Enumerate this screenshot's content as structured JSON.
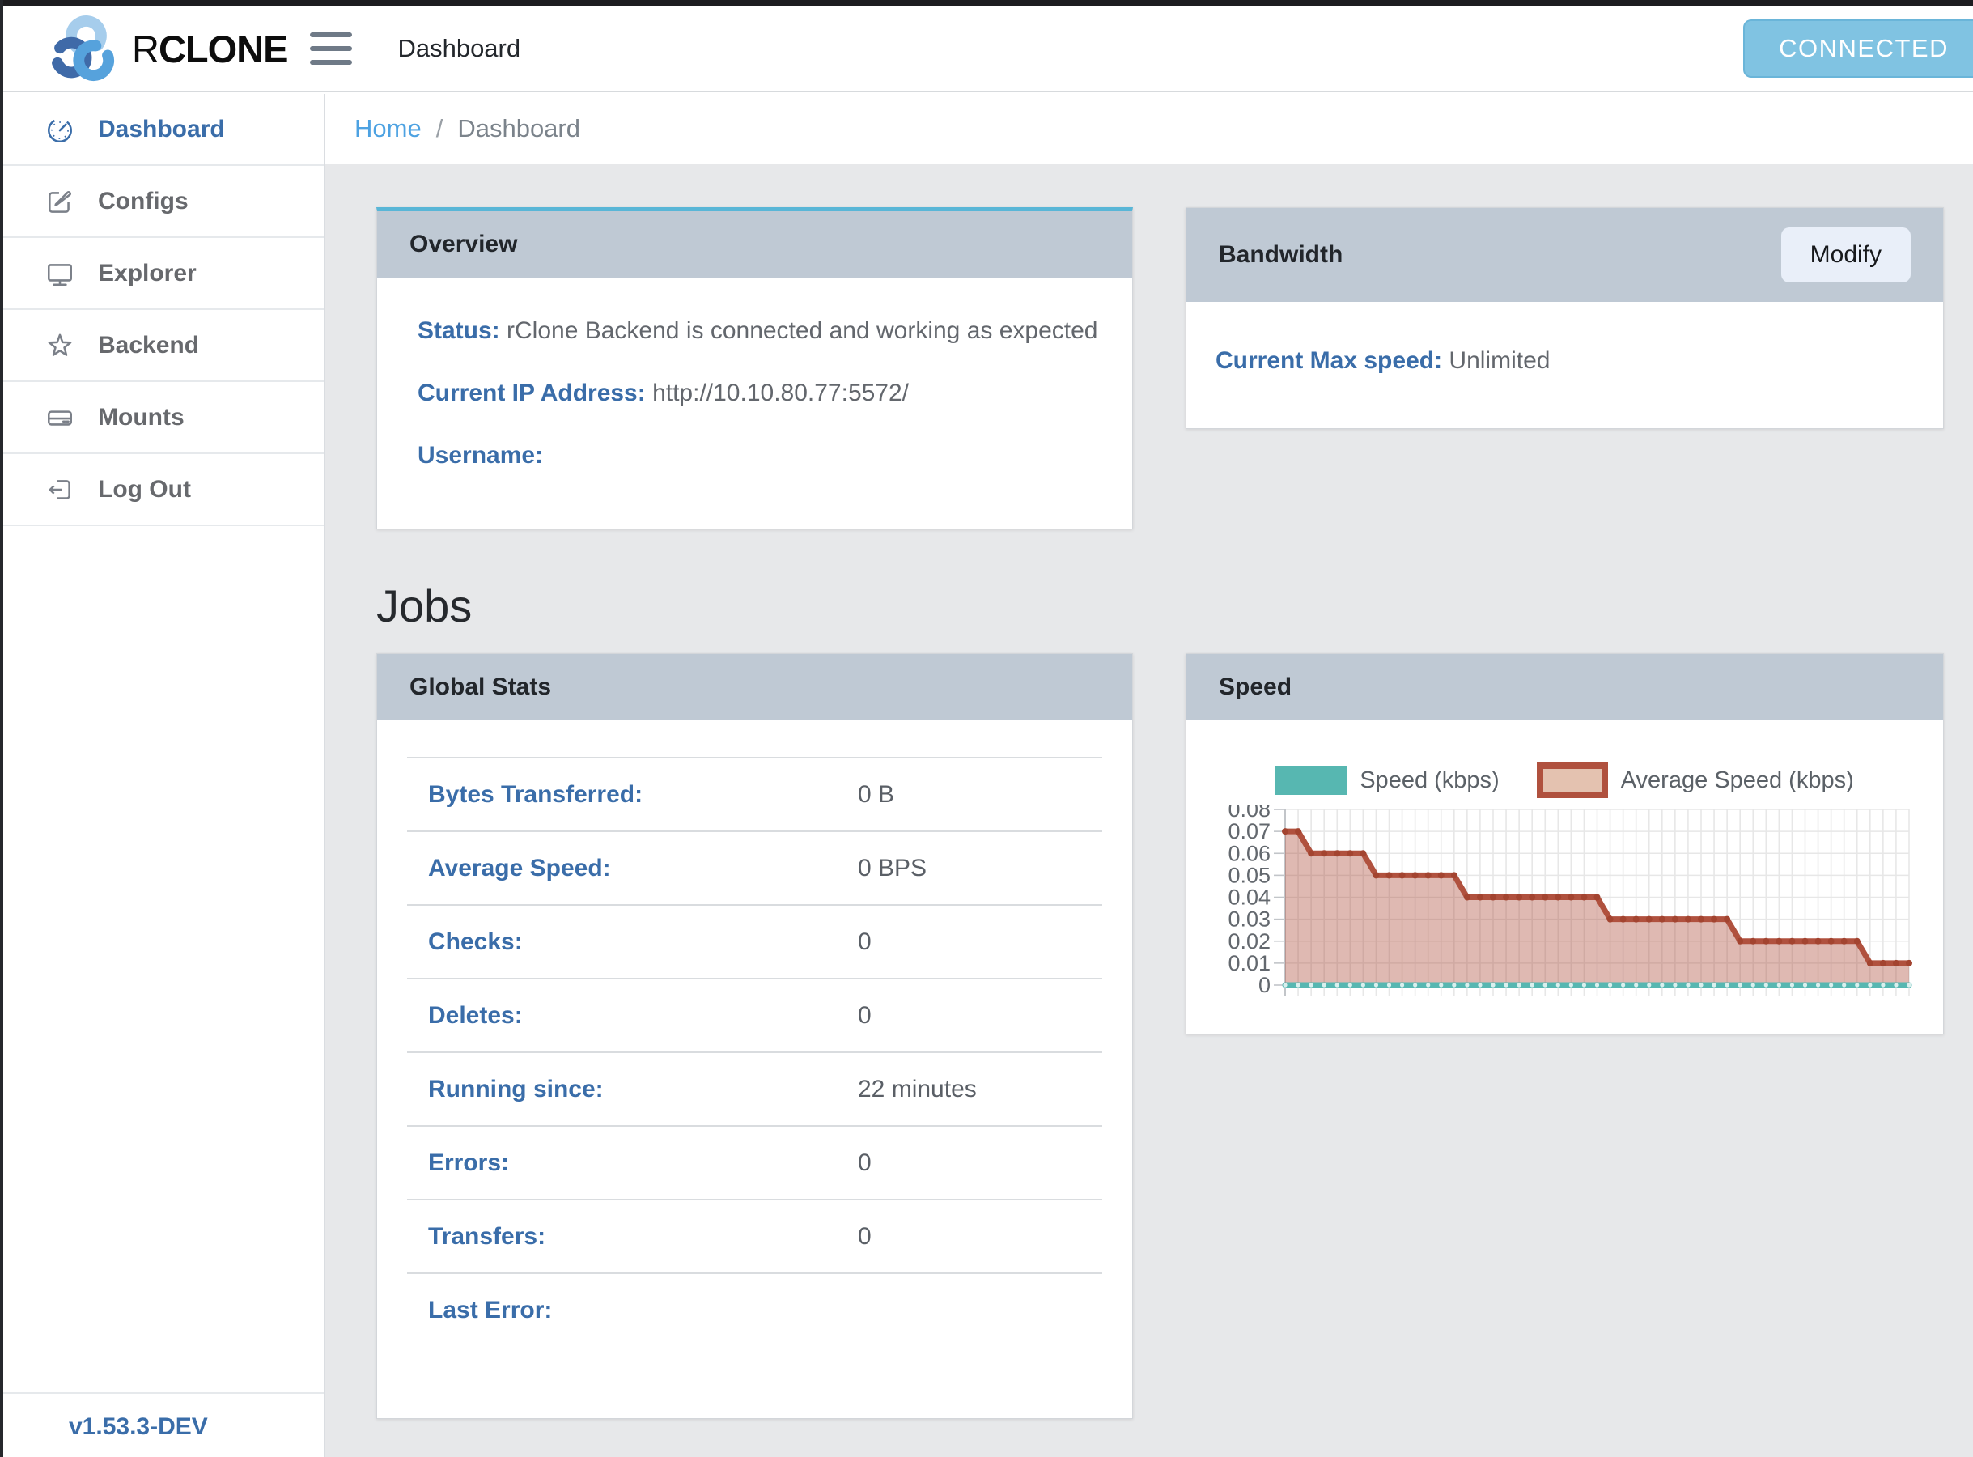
{
  "colors": {
    "accent_blue": "#3a6da9",
    "link_blue": "#4da2e2",
    "card_header_bg": "#bfc9d4",
    "info_top_border": "#59b6d7",
    "connected_bg": "#80c3e2",
    "teal": "#57b7b1",
    "chart_red": "#b0513e",
    "chart_fill": "rgba(176,81,62,0.40)",
    "grid": "#e7e7e7",
    "axis": "#c2c5c9"
  },
  "header": {
    "logo_text_light": "R",
    "logo_text_bold": "CLONE",
    "title": "Dashboard",
    "connected_label": "CONNECTED"
  },
  "breadcrumb": {
    "home": "Home",
    "separator": "/",
    "current": "Dashboard"
  },
  "sidebar": {
    "items": [
      {
        "label": "Dashboard",
        "icon": "gauge-icon",
        "active": true
      },
      {
        "label": "Configs",
        "icon": "edit-icon",
        "active": false
      },
      {
        "label": "Explorer",
        "icon": "monitor-icon",
        "active": false
      },
      {
        "label": "Backend",
        "icon": "star-icon",
        "active": false
      },
      {
        "label": "Mounts",
        "icon": "drive-icon",
        "active": false
      },
      {
        "label": "Log Out",
        "icon": "logout-icon",
        "active": false
      }
    ],
    "version": "v1.53.3-DEV"
  },
  "overview": {
    "title": "Overview",
    "rows": [
      {
        "label": "Status:",
        "value": "rClone Backend is connected and working as expected"
      },
      {
        "label": "Current IP Address:",
        "value": "http://10.10.80.77:5572/"
      },
      {
        "label": "Username:",
        "value": ""
      }
    ]
  },
  "bandwidth": {
    "title": "Bandwidth",
    "modify_label": "Modify",
    "label": "Current Max speed:",
    "value": "Unlimited"
  },
  "jobs": {
    "heading": "Jobs"
  },
  "global_stats": {
    "title": "Global Stats",
    "rows": [
      {
        "label": "Bytes Transferred:",
        "value": "0 B"
      },
      {
        "label": "Average Speed:",
        "value": "0 BPS"
      },
      {
        "label": "Checks:",
        "value": "0"
      },
      {
        "label": "Deletes:",
        "value": "0"
      },
      {
        "label": "Running since:",
        "value": "22 minutes"
      },
      {
        "label": "Errors:",
        "value": "0"
      },
      {
        "label": "Transfers:",
        "value": "0"
      },
      {
        "label": "Last Error:",
        "value": ""
      }
    ]
  },
  "speed_card": {
    "title": "Speed"
  },
  "chart_data": {
    "type": "line",
    "title": "Speed",
    "legend_position": "top",
    "grid": true,
    "ylim": [
      0,
      0.08
    ],
    "ytick_labels": [
      "0",
      "0.01",
      "0.02",
      "0.03",
      "0.04",
      "0.05",
      "0.06",
      "0.07",
      "0.08"
    ],
    "series": [
      {
        "name": "Speed (kbps)",
        "color": "#57b7b1",
        "fill": "none",
        "values": [
          0,
          0,
          0,
          0,
          0,
          0,
          0,
          0,
          0,
          0,
          0,
          0,
          0,
          0,
          0,
          0,
          0,
          0,
          0,
          0,
          0,
          0,
          0,
          0,
          0,
          0,
          0,
          0,
          0,
          0,
          0,
          0,
          0,
          0,
          0,
          0,
          0,
          0,
          0,
          0,
          0,
          0,
          0,
          0,
          0,
          0,
          0,
          0,
          0
        ]
      },
      {
        "name": "Average Speed (kbps)",
        "color": "#b0513e",
        "fill": "rgba(176,81,62,0.40)",
        "values": [
          0.07,
          0.07,
          0.06,
          0.06,
          0.06,
          0.06,
          0.06,
          0.05,
          0.05,
          0.05,
          0.05,
          0.05,
          0.05,
          0.05,
          0.04,
          0.04,
          0.04,
          0.04,
          0.04,
          0.04,
          0.04,
          0.04,
          0.04,
          0.04,
          0.04,
          0.03,
          0.03,
          0.03,
          0.03,
          0.03,
          0.03,
          0.03,
          0.03,
          0.03,
          0.03,
          0.02,
          0.02,
          0.02,
          0.02,
          0.02,
          0.02,
          0.02,
          0.02,
          0.02,
          0.02,
          0.01,
          0.01,
          0.01,
          0.01
        ]
      }
    ]
  }
}
